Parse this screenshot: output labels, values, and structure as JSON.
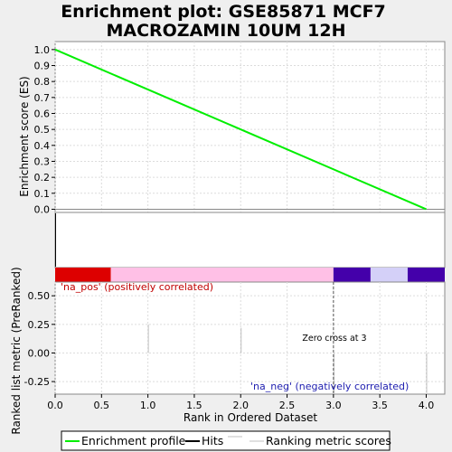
{
  "chart_data": {
    "title_line1": "Enrichment plot: GSE85871 MCF7",
    "title_line2": "MACROZAMIN 10UM 12H",
    "type": "line",
    "xlim": [
      0,
      4.2
    ],
    "x_ticks": [
      "0.0",
      "0.5",
      "1.0",
      "1.5",
      "2.0",
      "2.5",
      "3.0",
      "3.5",
      "4.0"
    ],
    "x_tick_values": [
      0,
      0.5,
      1.0,
      1.5,
      2.0,
      2.5,
      3.0,
      3.5,
      4.0
    ],
    "xlabel": "Rank in Ordered Dataset",
    "es_panel": {
      "ylabel": "Enrichment score (ES)",
      "ylim": [
        -0.02,
        1.05
      ],
      "y_ticks": [
        "0.0",
        "0.1",
        "0.2",
        "0.3",
        "0.4",
        "0.5",
        "0.6",
        "0.7",
        "0.8",
        "0.9",
        "1.0"
      ],
      "y_tick_values": [
        0,
        0.1,
        0.2,
        0.3,
        0.4,
        0.5,
        0.6,
        0.7,
        0.8,
        0.9,
        1.0
      ],
      "grid": true,
      "series": [
        {
          "name": "Enrichment profile",
          "color": "#00ee00",
          "x": [
            0,
            4
          ],
          "y": [
            1.0,
            0.0
          ]
        }
      ]
    },
    "hits_panel": {
      "hits_x": [
        0
      ]
    },
    "color_bar": [
      {
        "from": 0,
        "to": 0.6,
        "color": "#dd0000"
      },
      {
        "from": 0.6,
        "to": 3.0,
        "color": "#ffc0e6"
      },
      {
        "from": 3.0,
        "to": 3.4,
        "color": "#4400aa"
      },
      {
        "from": 3.4,
        "to": 3.8,
        "color": "#d4d0f8"
      },
      {
        "from": 3.8,
        "to": 4.2,
        "color": "#4400aa"
      }
    ],
    "rank_panel": {
      "ylabel": "Ranked list metric (PreRanked)",
      "ylim": [
        -0.36,
        0.62
      ],
      "y_ticks": [
        "0.50",
        "0.25",
        "0.00",
        "-0.25"
      ],
      "y_tick_values": [
        0.5,
        0.25,
        0.0,
        -0.25
      ],
      "bars": [
        {
          "x": 1.0,
          "value": 0.25
        },
        {
          "x": 2.0,
          "value": 0.22
        },
        {
          "x": 3.0,
          "value": -0.35
        },
        {
          "x": 4.0,
          "value": -0.35
        }
      ],
      "zero_cross_x": 3.0,
      "zero_cross_label": "Zero cross at 3",
      "pos_label": "'na_pos' (positively correlated)",
      "neg_label": "'na_neg' (negatively correlated)"
    },
    "legend": {
      "placement": "bottom",
      "items": [
        {
          "label": "Enrichment profile",
          "color": "#00ee00"
        },
        {
          "label": "Hits",
          "color": "#000000"
        },
        {
          "label": "Ranking metric scores",
          "color": "#c0c0c0"
        }
      ]
    }
  }
}
